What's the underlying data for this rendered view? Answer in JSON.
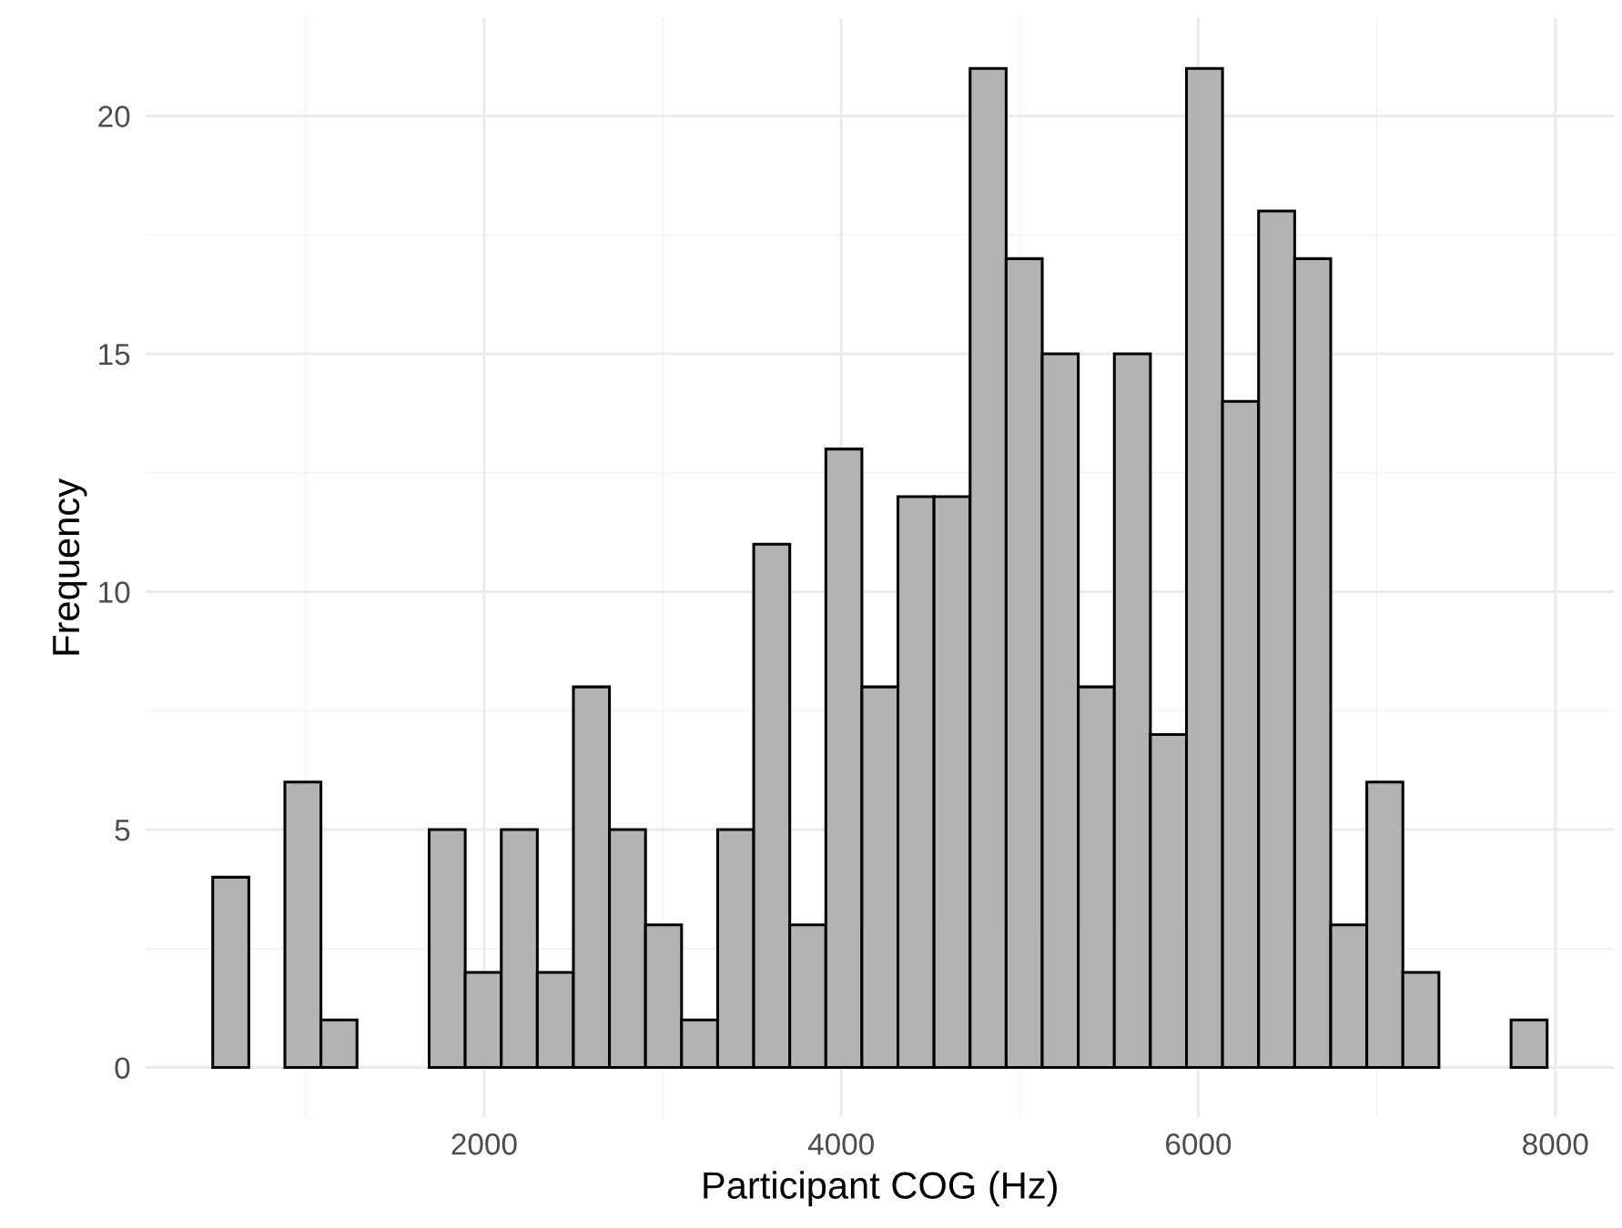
{
  "chart_data": {
    "type": "histogram",
    "xlabel": "Participant COG (Hz)",
    "ylabel": "Frequency",
    "bins": [
      480,
      682,
      884,
      1086,
      1288,
      1490,
      1692,
      1894,
      2096,
      2298,
      2500,
      2702,
      2904,
      3106,
      3308,
      3510,
      3712,
      3914,
      4116,
      4318,
      4520,
      4722,
      4924,
      5126,
      5328,
      5530,
      5732,
      5934,
      6136,
      6338,
      6540,
      6742,
      6944,
      7146,
      7348,
      7550,
      7752,
      7954
    ],
    "values": [
      4,
      0,
      6,
      1,
      0,
      0,
      5,
      2,
      5,
      2,
      8,
      5,
      3,
      1,
      5,
      11,
      3,
      13,
      8,
      12,
      12,
      21,
      17,
      15,
      8,
      15,
      7,
      21,
      14,
      18,
      17,
      3,
      6,
      2,
      0,
      0,
      1
    ],
    "color": "#b3b3b3",
    "xlim": [
      106,
      8328
    ],
    "ylim": [
      -1.05,
      22.05
    ],
    "xticks": [
      2000,
      4000,
      6000,
      8000
    ],
    "yticks": [
      0,
      5,
      10,
      15,
      20
    ],
    "grid": true
  }
}
